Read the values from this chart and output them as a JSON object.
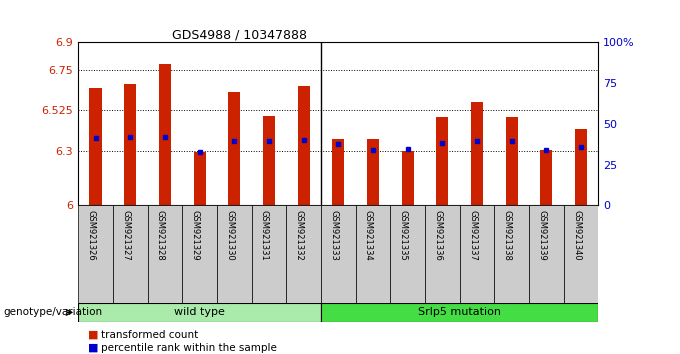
{
  "title": "GDS4988 / 10347888",
  "samples": [
    "GSM921326",
    "GSM921327",
    "GSM921328",
    "GSM921329",
    "GSM921330",
    "GSM921331",
    "GSM921332",
    "GSM921333",
    "GSM921334",
    "GSM921335",
    "GSM921336",
    "GSM921337",
    "GSM921338",
    "GSM921339",
    "GSM921340"
  ],
  "transformed_counts": [
    6.65,
    6.67,
    6.78,
    6.295,
    6.625,
    6.495,
    6.66,
    6.365,
    6.365,
    6.3,
    6.49,
    6.57,
    6.49,
    6.305,
    6.42
  ],
  "percentile_ranks": [
    6.37,
    6.375,
    6.38,
    6.295,
    6.355,
    6.355,
    6.36,
    6.34,
    6.305,
    6.31,
    6.345,
    6.355,
    6.355,
    6.305,
    6.325
  ],
  "y_min": 6.0,
  "y_max": 6.9,
  "y_ticks": [
    6.0,
    6.3,
    6.525,
    6.75,
    6.9
  ],
  "y_tick_labels": [
    "6",
    "6.3",
    "6.525",
    "6.75",
    "6.9"
  ],
  "right_y_ticks": [
    0.0,
    0.25,
    0.5,
    0.75,
    1.0
  ],
  "right_y_tick_labels": [
    "0",
    "25",
    "50",
    "75",
    "100%"
  ],
  "bar_color": "#CC2200",
  "blue_marker_color": "#0000CC",
  "group1_label": "wild type",
  "group2_label": "Srlp5 mutation",
  "group1_color": "#AAEAAA",
  "group2_color": "#44DD44",
  "genotype_label": "genotype/variation",
  "legend_item1": "transformed count",
  "legend_item2": "percentile rank within the sample",
  "bg_color": "#FFFFFF",
  "tick_color_left": "#CC2200",
  "tick_color_right": "#0000CC",
  "bar_width": 0.35,
  "base_value": 6.0,
  "n_group1": 7,
  "n_group2": 8
}
